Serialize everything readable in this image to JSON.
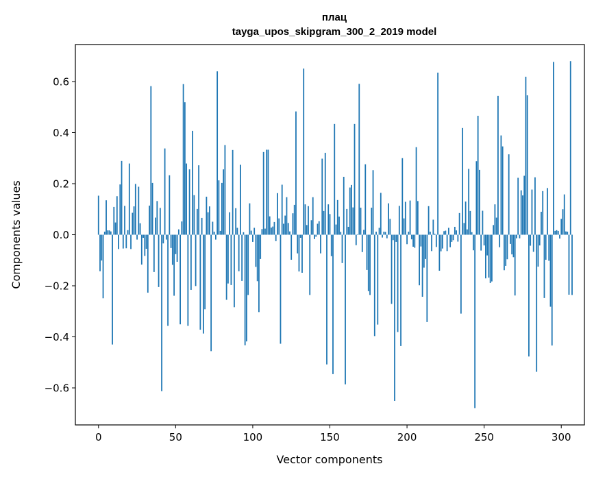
{
  "chart_data": {
    "type": "bar",
    "title_line1": "плац",
    "title_line2": "tayga_upos_skipgram_300_2_2019 model",
    "xlabel": "Vector components",
    "ylabel": "Components values",
    "xlim": [
      -15,
      315
    ],
    "ylim": [
      -0.745,
      0.745
    ],
    "xticks": [
      0,
      50,
      100,
      150,
      200,
      250,
      300
    ],
    "xtick_labels": [
      "0",
      "50",
      "100",
      "150",
      "200",
      "250",
      "300"
    ],
    "yticks": [
      -0.6,
      -0.4,
      -0.2,
      0.0,
      0.2,
      0.4,
      0.6
    ],
    "ytick_labels": [
      "−0.6",
      "−0.4",
      "−0.2",
      "0.0",
      "0.2",
      "0.4",
      "0.6"
    ],
    "bar_color": "#1f77b4",
    "values": [
      0.153,
      -0.143,
      -0.101,
      -0.249,
      0.012,
      0.135,
      0.017,
      0.017,
      0.013,
      -0.43,
      0.109,
      0.048,
      0.151,
      -0.056,
      0.197,
      0.289,
      -0.054,
      0.113,
      -0.053,
      0.018,
      0.279,
      -0.056,
      0.086,
      0.111,
      0.199,
      -0.019,
      0.188,
      0.045,
      -0.117,
      -0.012,
      -0.083,
      -0.055,
      -0.227,
      0.114,
      0.582,
      0.203,
      -0.146,
      0.067,
      0.132,
      -0.205,
      0.105,
      -0.613,
      -0.034,
      0.338,
      -0.019,
      -0.357,
      0.233,
      -0.052,
      -0.118,
      -0.239,
      -0.076,
      -0.106,
      0.021,
      -0.351,
      0.052,
      0.59,
      0.519,
      0.279,
      -0.357,
      0.256,
      -0.216,
      0.407,
      0.155,
      -0.201,
      0.101,
      0.272,
      -0.372,
      0.066,
      -0.387,
      -0.292,
      0.149,
      0.088,
      0.111,
      -0.456,
      0.051,
      0.012,
      -0.019,
      0.64,
      0.213,
      0.015,
      0.203,
      0.256,
      0.351,
      -0.255,
      -0.191,
      0.088,
      -0.197,
      0.332,
      -0.284,
      0.104,
      0.027,
      -0.143,
      0.274,
      -0.181,
      0.01,
      -0.433,
      -0.418,
      -0.236,
      0.123,
      0.016,
      -0.028,
      0.027,
      -0.126,
      -0.182,
      -0.303,
      -0.095,
      0.022,
      0.324,
      0.024,
      0.333,
      0.333,
      0.072,
      0.028,
      0.032,
      0.05,
      -0.025,
      0.163,
      0.064,
      -0.427,
      0.196,
      0.043,
      0.075,
      0.147,
      0.046,
      0.013,
      -0.098,
      0.084,
      0.117,
      0.483,
      -0.073,
      -0.144,
      -0.012,
      -0.149,
      0.651,
      0.119,
      0.038,
      0.112,
      -0.236,
      0.057,
      0.147,
      -0.017,
      -0.008,
      0.043,
      0.053,
      -0.073,
      0.298,
      0.093,
      0.321,
      -0.508,
      0.119,
      0.081,
      -0.084,
      -0.546,
      0.434,
      0.04,
      0.136,
      0.071,
      0.011,
      -0.111,
      0.227,
      -0.586,
      0.101,
      0.031,
      0.185,
      0.195,
      0.107,
      0.434,
      -0.041,
      0.002,
      0.591,
      0.106,
      -0.068,
      0.019,
      0.276,
      -0.138,
      -0.221,
      -0.236,
      0.106,
      0.253,
      -0.397,
      0.012,
      -0.352,
      0.027,
      0.164,
      -0.011,
      0.012,
      0.011,
      -0.014,
      0.123,
      0.062,
      -0.271,
      -0.021,
      -0.651,
      -0.028,
      -0.381,
      0.113,
      -0.436,
      0.3,
      0.064,
      0.129,
      -0.037,
      0.012,
      0.134,
      -0.018,
      -0.047,
      -0.051,
      0.343,
      0.132,
      -0.198,
      -0.046,
      -0.243,
      -0.129,
      -0.095,
      -0.342,
      0.112,
      0.012,
      -0.064,
      0.059,
      0.004,
      -0.048,
      0.635,
      -0.141,
      -0.065,
      -0.054,
      0.014,
      0.016,
      -0.064,
      0.027,
      -0.049,
      -0.028,
      -0.021,
      0.031,
      0.017,
      -0.027,
      0.085,
      -0.309,
      0.418,
      0.046,
      0.13,
      0.021,
      0.258,
      0.093,
      0.01,
      -0.061,
      -0.679,
      0.288,
      0.466,
      0.254,
      -0.062,
      0.094,
      -0.042,
      -0.171,
      -0.081,
      -0.168,
      -0.189,
      -0.183,
      0.038,
      0.119,
      0.067,
      0.544,
      -0.049,
      0.389,
      0.346,
      -0.139,
      -0.122,
      -0.096,
      0.315,
      -0.036,
      -0.077,
      -0.088,
      -0.238,
      -0.014,
      0.223,
      -0.014,
      0.174,
      0.154,
      0.231,
      0.619,
      0.546,
      -0.477,
      -0.043,
      0.177,
      -0.067,
      0.225,
      -0.537,
      -0.125,
      -0.042,
      0.09,
      0.171,
      -0.248,
      -0.098,
      0.183,
      -0.102,
      -0.282,
      -0.434,
      0.677,
      0.015,
      0.018,
      0.015,
      -0.015,
      0.062,
      0.1,
      0.158,
      0.013,
      0.012,
      -0.235,
      0.68,
      -0.236
    ]
  }
}
